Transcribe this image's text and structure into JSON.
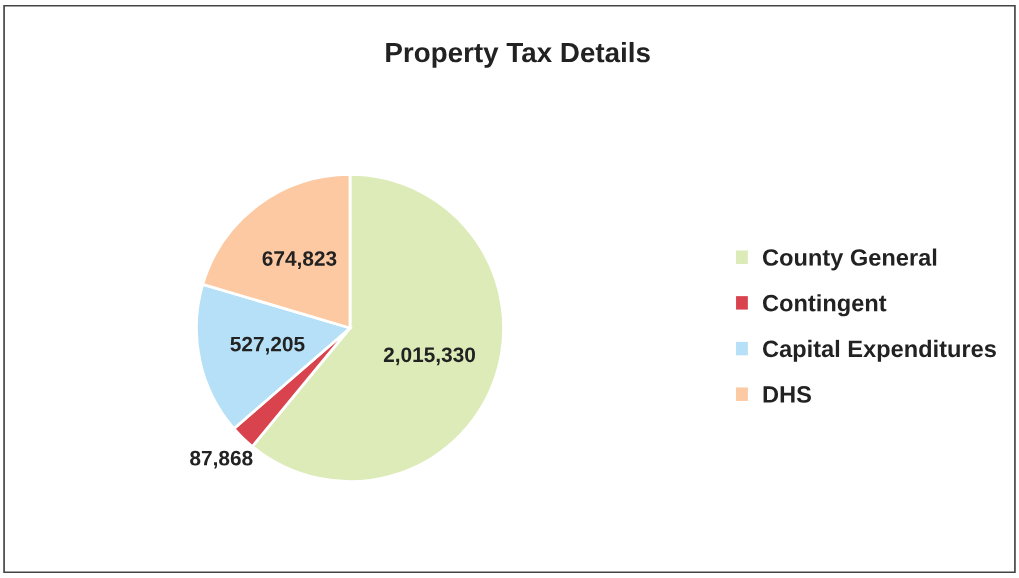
{
  "chart_data": {
    "type": "pie",
    "title": "Property Tax Details",
    "categories": [
      "County General",
      "Contingent",
      "Capital Expenditures",
      "DHS"
    ],
    "values": [
      2015330,
      87868,
      527205,
      674823
    ],
    "colors": [
      "#dcebb8",
      "#d9434e",
      "#b5e0f7",
      "#fcc9a2"
    ],
    "value_labels": [
      "2,015,330",
      "87,868",
      "527,205",
      "674,823"
    ],
    "legend": "right"
  }
}
